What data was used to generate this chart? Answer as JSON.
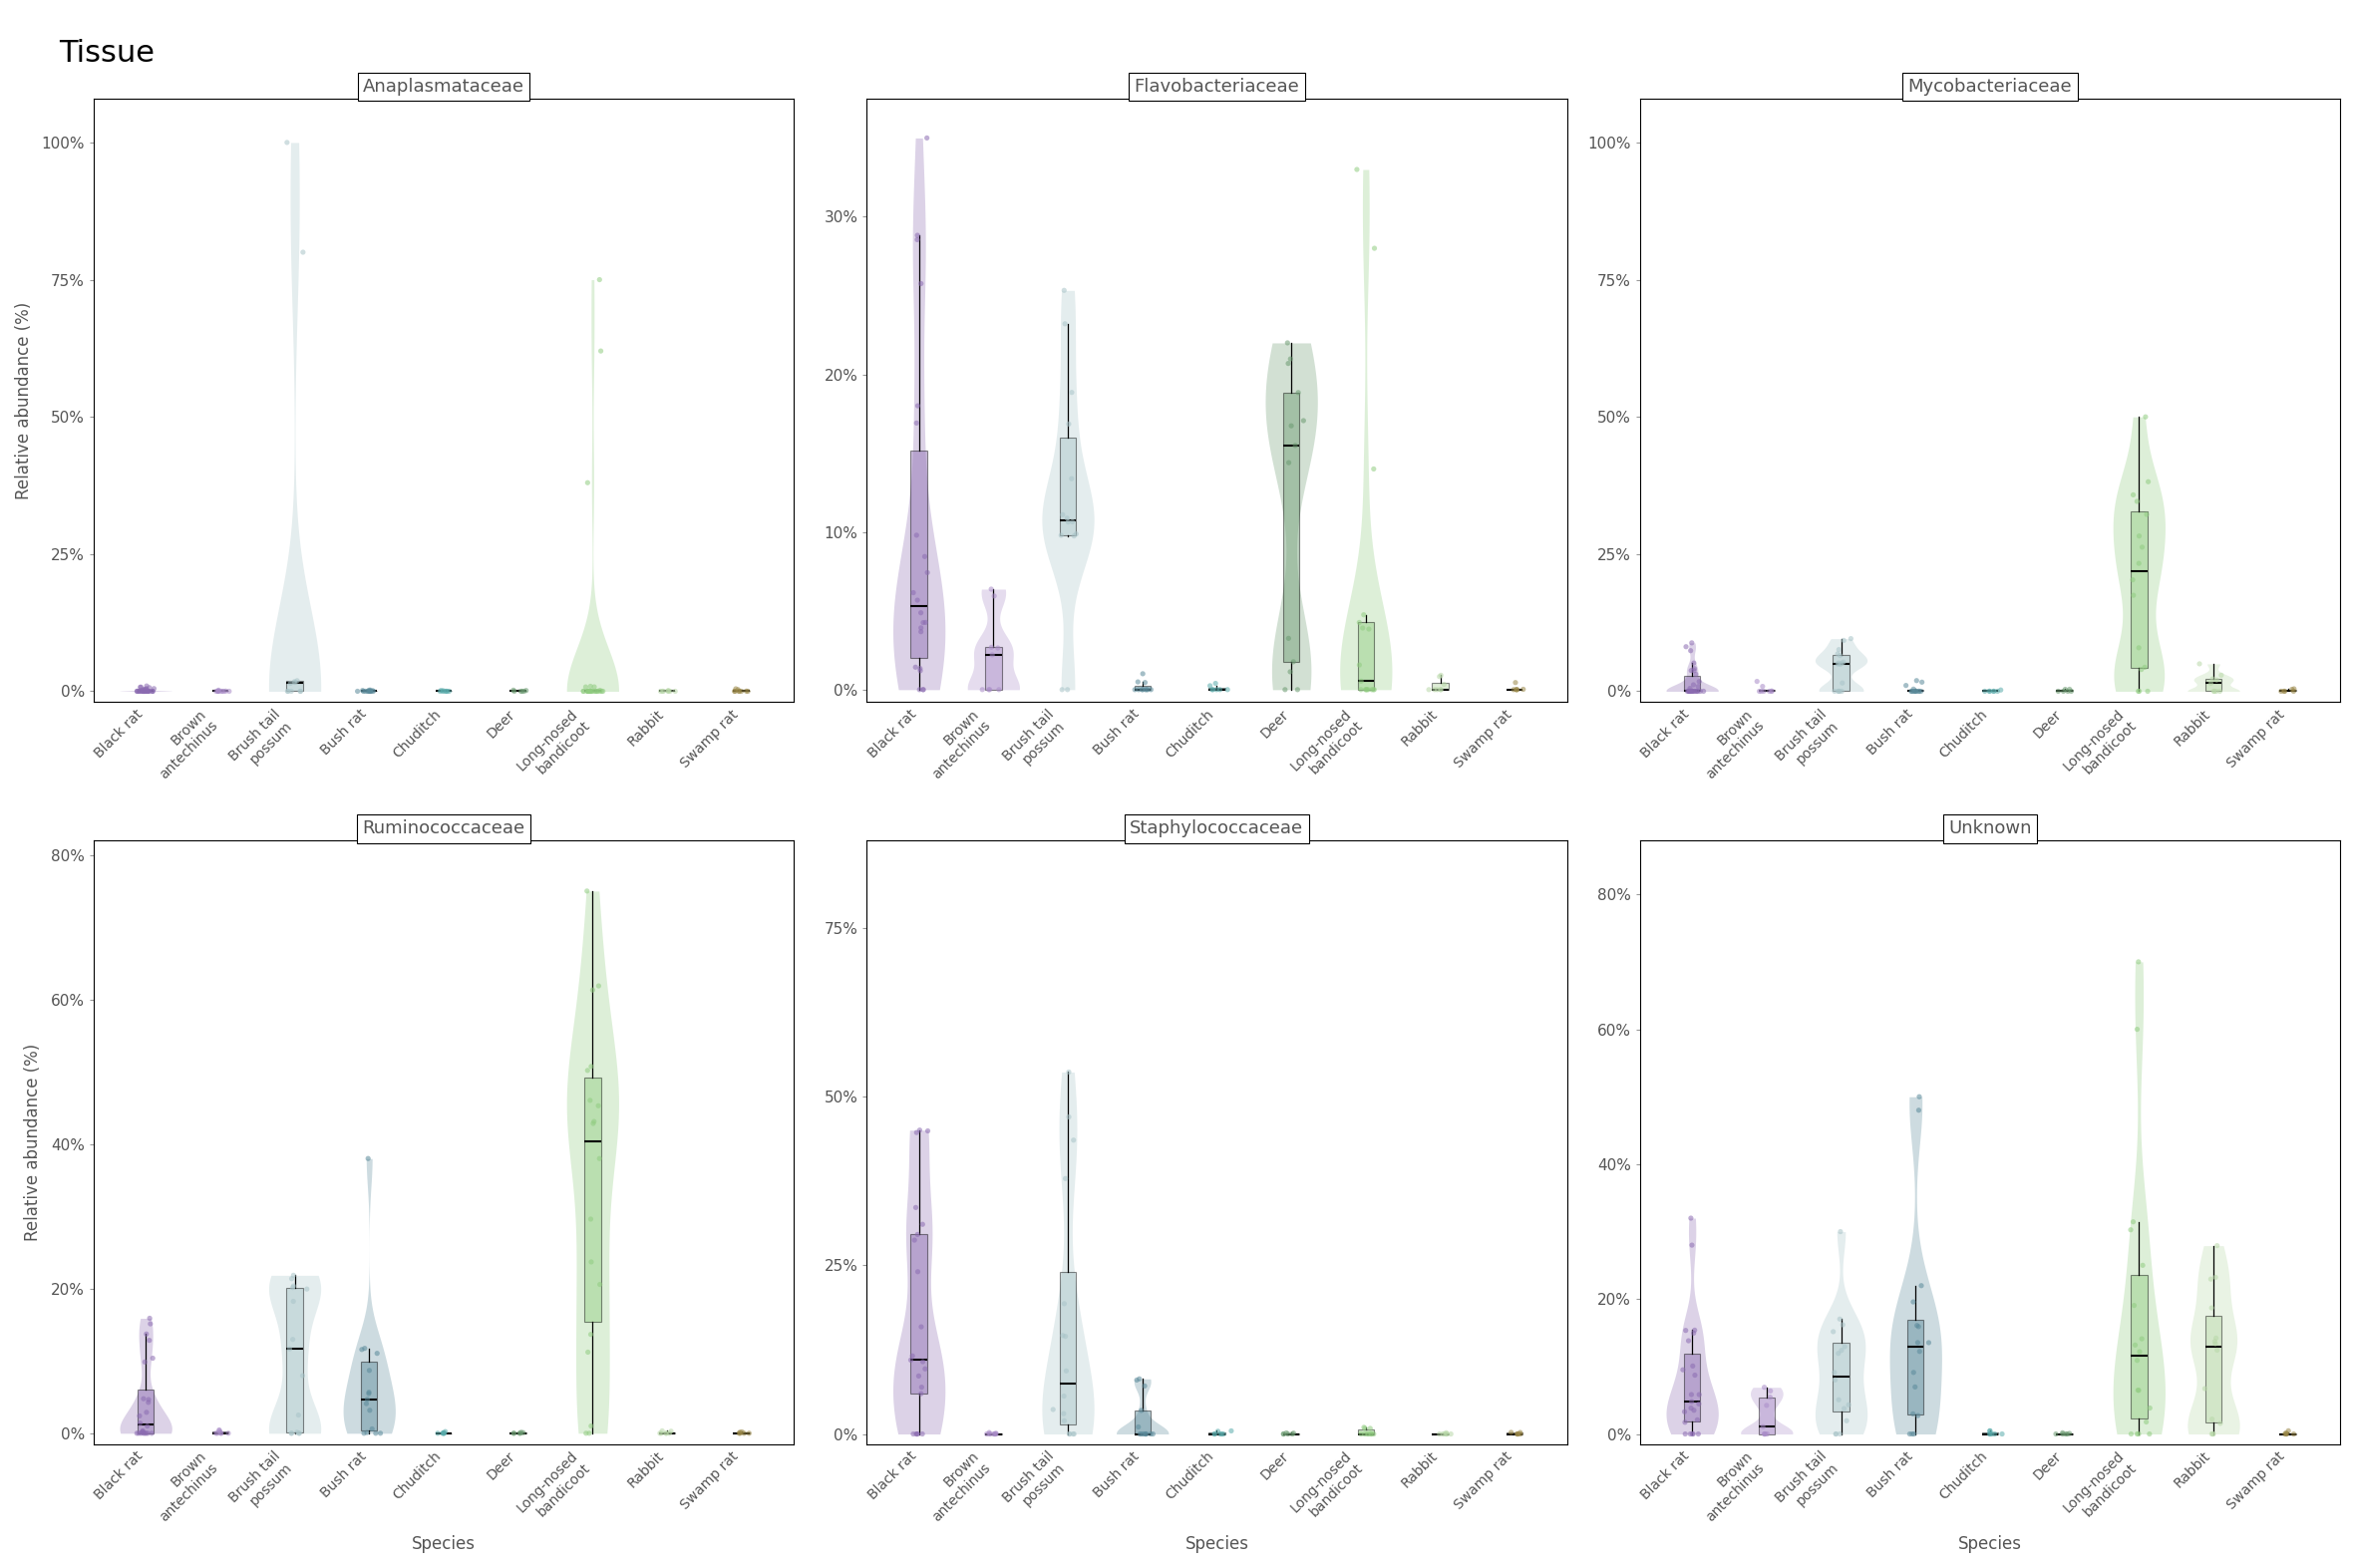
{
  "title": "Tissue",
  "panels": [
    "Anaplasmataceae",
    "Flavobacteriaceae",
    "Mycobacteriaceae",
    "Ruminococcaceae",
    "Staphylococcaceae",
    "Unknown"
  ],
  "species_names": [
    "Black rat",
    "Brown\nantechinus",
    "Brush tail\npossum",
    "Bush rat",
    "Chuditch",
    "Deer",
    "Long-nosed\nbandicoot",
    "Rabbit",
    "Swamp rat"
  ],
  "species_colors": [
    "#8B6BB1",
    "#A98CC8",
    "#A8C4C8",
    "#5A8A9A",
    "#5AACAC",
    "#6A9A70",
    "#90CC80",
    "#B8D8A8",
    "#9A8848"
  ],
  "ylabel": "Relative abundance (%)",
  "xlabel": "Species",
  "panel_yticks": {
    "Anaplasmataceae": [
      [
        0,
        0.25,
        0.5,
        0.75,
        1.0
      ],
      [
        "0%",
        "25%",
        "50%",
        "75%",
        "100%"
      ]
    ],
    "Flavobacteriaceae": [
      [
        0,
        0.1,
        0.2,
        0.3
      ],
      [
        "0%",
        "10%",
        "20%",
        "30%"
      ]
    ],
    "Mycobacteriaceae": [
      [
        0,
        0.25,
        0.5,
        0.75,
        1.0
      ],
      [
        "0%",
        "25%",
        "50%",
        "75%",
        "100%"
      ]
    ],
    "Ruminococcaceae": [
      [
        0,
        0.2,
        0.4,
        0.6,
        0.8
      ],
      [
        "0%",
        "20%",
        "40%",
        "60%",
        "80%"
      ]
    ],
    "Staphylococcaceae": [
      [
        0,
        0.25,
        0.5,
        0.75
      ],
      [
        "0%",
        "25%",
        "50%",
        "75%"
      ]
    ],
    "Unknown": [
      [
        0,
        0.2,
        0.4,
        0.6,
        0.8
      ],
      [
        "0%",
        "20%",
        "40%",
        "60%",
        "80%"
      ]
    ]
  },
  "panel_ylims": {
    "Anaplasmataceae": [
      -0.02,
      1.08
    ],
    "Flavobacteriaceae": [
      -0.008,
      0.375
    ],
    "Mycobacteriaceae": [
      -0.02,
      1.08
    ],
    "Ruminococcaceae": [
      -0.015,
      0.82
    ],
    "Staphylococcaceae": [
      -0.015,
      0.88
    ],
    "Unknown": [
      -0.015,
      0.88
    ]
  }
}
